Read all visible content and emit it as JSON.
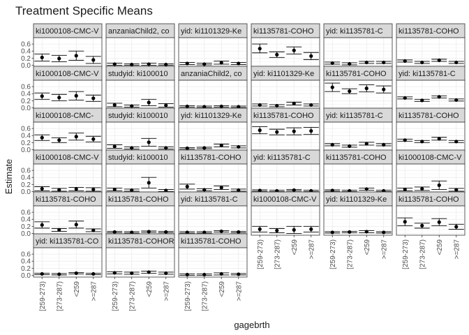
{
  "chart_data": {
    "type": "scatter",
    "title": "Treatment Specific Means",
    "xlabel": "gagebrth",
    "ylabel": "Estimate",
    "categories": [
      "[259-273)",
      "[273-287)",
      "<259",
      ">=287"
    ],
    "y_ticks": [
      0.0,
      0.2,
      0.4,
      0.6
    ],
    "ylim": [
      -0.05,
      0.78
    ],
    "grid": true,
    "facets": [
      {
        "label": "ki1000108-CMC-V",
        "estimate": [
          0.22,
          0.19,
          0.27,
          0.15
        ],
        "lower": [
          0.12,
          0.1,
          0.14,
          0.05
        ],
        "upper": [
          0.32,
          0.28,
          0.4,
          0.25
        ]
      },
      {
        "label": "anzaniaChild2, co",
        "estimate": [
          0.03,
          0.02,
          0.03,
          0.02
        ],
        "lower": [
          0.0,
          0.0,
          0.0,
          0.0
        ],
        "upper": [
          0.06,
          0.04,
          0.06,
          0.04
        ]
      },
      {
        "label": "yid: ki1101329-Ke",
        "estimate": [
          0.05,
          0.03,
          0.07,
          0.05
        ],
        "lower": [
          0.02,
          0.01,
          0.03,
          0.02
        ],
        "upper": [
          0.08,
          0.06,
          0.12,
          0.08
        ]
      },
      {
        "label": "ki1135781-COHO",
        "estimate": [
          0.47,
          0.3,
          0.42,
          0.26
        ],
        "lower": [
          0.35,
          0.22,
          0.32,
          0.16
        ],
        "upper": [
          0.6,
          0.38,
          0.52,
          0.36
        ]
      },
      {
        "label": "yid: ki1135781-C",
        "estimate": [
          0.06,
          0.04,
          0.08,
          0.08
        ],
        "lower": [
          0.03,
          0.01,
          0.05,
          0.05
        ],
        "upper": [
          0.09,
          0.07,
          0.11,
          0.11
        ]
      },
      {
        "label": "ki1135781-COHO",
        "estimate": [
          0.12,
          0.08,
          0.14,
          0.08
        ],
        "lower": [
          0.09,
          0.05,
          0.11,
          0.05
        ],
        "upper": [
          0.15,
          0.11,
          0.17,
          0.11
        ]
      },
      {
        "label": "ki1000108-CMC-V",
        "estimate": [
          0.33,
          0.29,
          0.34,
          0.27
        ],
        "lower": [
          0.24,
          0.2,
          0.22,
          0.18
        ],
        "upper": [
          0.42,
          0.38,
          0.46,
          0.36
        ]
      },
      {
        "label": "studyid: ki100010",
        "estimate": [
          0.08,
          0.05,
          0.15,
          0.07
        ],
        "lower": [
          0.03,
          0.02,
          0.06,
          0.02
        ],
        "upper": [
          0.13,
          0.08,
          0.24,
          0.12
        ]
      },
      {
        "label": "anzaniaChild2, co",
        "estimate": [
          0.04,
          0.03,
          0.04,
          0.03
        ],
        "lower": [
          0.02,
          0.01,
          0.02,
          0.01
        ],
        "upper": [
          0.06,
          0.05,
          0.06,
          0.05
        ]
      },
      {
        "label": "yid: ki1101329-Ke",
        "estimate": [
          0.08,
          0.06,
          0.12,
          0.08
        ],
        "lower": [
          0.05,
          0.03,
          0.08,
          0.05
        ],
        "upper": [
          0.11,
          0.09,
          0.16,
          0.11
        ]
      },
      {
        "label": "ki1135781-COHO",
        "estimate": [
          0.58,
          0.47,
          0.55,
          0.52
        ],
        "lower": [
          0.46,
          0.4,
          0.45,
          0.42
        ],
        "upper": [
          0.7,
          0.54,
          0.65,
          0.62
        ]
      },
      {
        "label": "yid: ki1135781-C",
        "estimate": [
          0.28,
          0.21,
          0.31,
          0.22
        ],
        "lower": [
          0.25,
          0.18,
          0.28,
          0.19
        ],
        "upper": [
          0.31,
          0.24,
          0.34,
          0.25
        ]
      },
      {
        "label": "ki1000108-CMC-",
        "estimate": [
          0.34,
          0.27,
          0.37,
          0.3
        ],
        "lower": [
          0.26,
          0.2,
          0.27,
          0.22
        ],
        "upper": [
          0.42,
          0.34,
          0.47,
          0.38
        ]
      },
      {
        "label": "studyid: ki100010",
        "estimate": [
          0.09,
          0.05,
          0.21,
          0.05
        ],
        "lower": [
          0.04,
          0.02,
          0.1,
          0.02
        ],
        "upper": [
          0.14,
          0.08,
          0.32,
          0.08
        ]
      },
      {
        "label": "yid: ki1101329-Ke",
        "estimate": [
          0.04,
          0.05,
          0.12,
          0.08
        ],
        "lower": [
          0.02,
          0.03,
          0.08,
          0.05
        ],
        "upper": [
          0.06,
          0.07,
          0.16,
          0.11
        ]
      },
      {
        "label": "ki1135781-COHO",
        "estimate": [
          0.55,
          0.5,
          0.52,
          0.53
        ],
        "lower": [
          0.45,
          0.42,
          0.42,
          0.43
        ],
        "upper": [
          0.65,
          0.58,
          0.62,
          0.63
        ]
      },
      {
        "label": "yid: ki1135781-C",
        "estimate": [
          0.14,
          0.1,
          0.17,
          0.14
        ],
        "lower": [
          0.11,
          0.07,
          0.13,
          0.11
        ],
        "upper": [
          0.17,
          0.13,
          0.21,
          0.17
        ]
      },
      {
        "label": "ki1135781-COHO",
        "estimate": [
          0.27,
          0.23,
          0.31,
          0.23
        ],
        "lower": [
          0.24,
          0.2,
          0.27,
          0.2
        ],
        "upper": [
          0.3,
          0.26,
          0.35,
          0.26
        ]
      },
      {
        "label": "ki1000108-CMC-V",
        "estimate": [
          0.08,
          0.05,
          0.07,
          0.06
        ],
        "lower": [
          0.02,
          0.01,
          0.02,
          0.01
        ],
        "upper": [
          0.14,
          0.09,
          0.12,
          0.11
        ]
      },
      {
        "label": "studyid: ki100010",
        "estimate": [
          0.06,
          0.04,
          0.25,
          0.03
        ],
        "lower": [
          0.02,
          0.01,
          0.1,
          0.0
        ],
        "upper": [
          0.1,
          0.07,
          0.4,
          0.06
        ]
      },
      {
        "label": "ki1135781-COHO",
        "estimate": [
          0.14,
          0.05,
          0.11,
          0.04
        ],
        "lower": [
          0.07,
          0.02,
          0.06,
          0.01
        ],
        "upper": [
          0.21,
          0.08,
          0.16,
          0.07
        ]
      },
      {
        "label": "yid: ki1135781-C",
        "estimate": [
          0.03,
          0.02,
          0.04,
          0.02
        ],
        "lower": [
          0.01,
          0.0,
          0.02,
          0.0
        ],
        "upper": [
          0.05,
          0.04,
          0.06,
          0.04
        ]
      },
      {
        "label": "ki1135781-COHO",
        "estimate": [
          0.03,
          0.02,
          0.07,
          0.02
        ],
        "lower": [
          0.01,
          0.0,
          0.04,
          0.0
        ],
        "upper": [
          0.05,
          0.04,
          0.1,
          0.04
        ]
      },
      {
        "label": "ki1000108-CMC-V",
        "estimate": [
          0.06,
          0.08,
          0.18,
          0.05
        ],
        "lower": [
          0.02,
          0.03,
          0.06,
          0.01
        ],
        "upper": [
          0.1,
          0.13,
          0.3,
          0.09
        ]
      },
      {
        "label": "ki1135781-COHO",
        "estimate": [
          0.24,
          0.1,
          0.25,
          0.09
        ],
        "lower": [
          0.15,
          0.06,
          0.15,
          0.05
        ],
        "upper": [
          0.33,
          0.14,
          0.35,
          0.13
        ]
      },
      {
        "label": "ki1135781-COHO",
        "estimate": [
          0.04,
          0.03,
          0.05,
          0.04
        ],
        "lower": [
          0.02,
          0.01,
          0.03,
          0.02
        ],
        "upper": [
          0.06,
          0.05,
          0.07,
          0.06
        ]
      },
      {
        "label": "yid: ki1135781-C",
        "estimate": [
          0.03,
          0.03,
          0.06,
          0.04
        ],
        "lower": [
          0.01,
          0.01,
          0.04,
          0.02
        ],
        "upper": [
          0.05,
          0.05,
          0.08,
          0.06
        ]
      },
      {
        "label": "ki1000108-CMC-V",
        "estimate": [
          0.12,
          0.08,
          0.1,
          0.12
        ],
        "lower": [
          0.04,
          0.02,
          0.0,
          0.04
        ],
        "upper": [
          0.2,
          0.14,
          0.2,
          0.2
        ]
      },
      {
        "label": "yid: ki1101329-Ke",
        "estimate": [
          0.03,
          0.04,
          0.05,
          0.03
        ],
        "lower": [
          0.01,
          0.02,
          0.02,
          0.01
        ],
        "upper": [
          0.05,
          0.06,
          0.08,
          0.05
        ]
      },
      {
        "label": "ki1135781-COHO",
        "estimate": [
          0.33,
          0.22,
          0.32,
          0.19
        ],
        "lower": [
          0.22,
          0.15,
          0.22,
          0.12
        ],
        "upper": [
          0.44,
          0.29,
          0.42,
          0.26
        ]
      },
      {
        "label": "yid: ki1135781-CO",
        "estimate": [
          0.04,
          0.03,
          0.06,
          0.04
        ],
        "lower": [
          0.02,
          0.01,
          0.04,
          0.02
        ],
        "upper": [
          0.06,
          0.05,
          0.08,
          0.06
        ]
      },
      {
        "label": "ki1135781-COHOR",
        "estimate": [
          0.07,
          0.06,
          0.09,
          0.06
        ],
        "lower": [
          0.04,
          0.03,
          0.06,
          0.03
        ],
        "upper": [
          0.1,
          0.09,
          0.12,
          0.09
        ]
      },
      {
        "label": "ki1135781-COHO",
        "estimate": [
          0.02,
          0.02,
          0.04,
          0.03
        ],
        "lower": [
          0.0,
          0.0,
          0.01,
          0.01
        ],
        "upper": [
          0.04,
          0.04,
          0.07,
          0.05
        ]
      }
    ]
  },
  "colors": {
    "background": "#ffffff",
    "strip_fill": "#d9d9d9",
    "panel_border": "#333333",
    "grid_major": "#ebebeb",
    "grid_minor": "#f5f5f5",
    "point": "#000000",
    "text": "#1a1a1a",
    "tick_text": "#4d4d4d"
  }
}
